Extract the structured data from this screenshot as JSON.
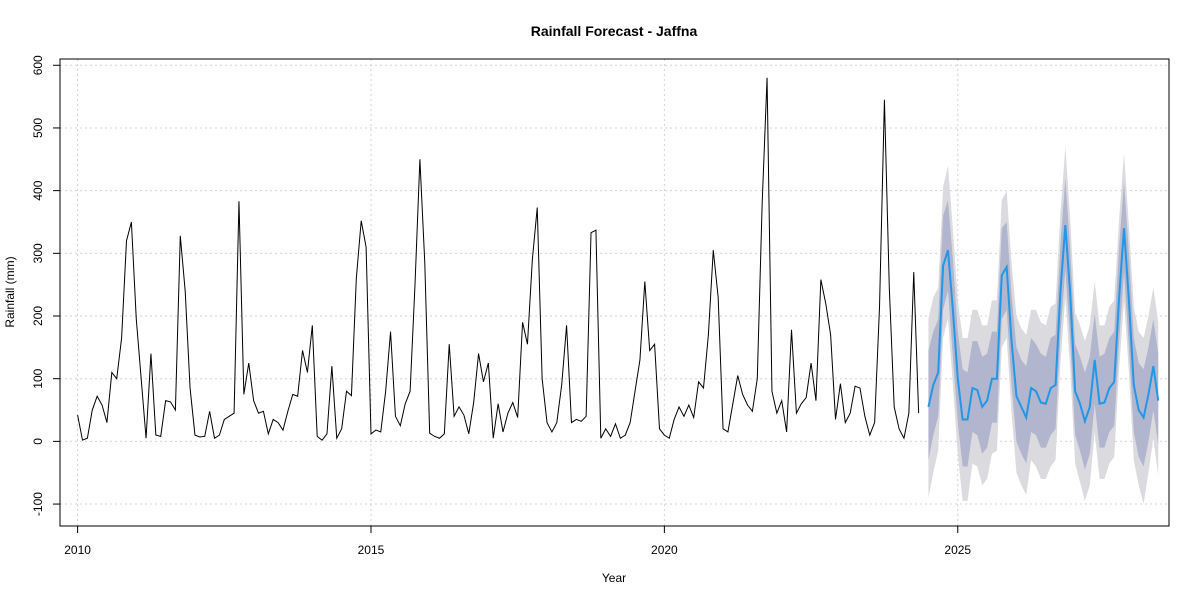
{
  "chart_data": {
    "type": "line",
    "title": "Rainfall Forecast - Jaffna",
    "xlabel": "Year",
    "ylabel": "Rainfall (mm)",
    "xlim": [
      2009.7,
      2028.6
    ],
    "ylim": [
      -135,
      610
    ],
    "x_ticks": [
      2010,
      2015,
      2020,
      2025
    ],
    "y_ticks": [
      -100,
      0,
      100,
      200,
      300,
      400,
      500,
      600
    ],
    "grid": true,
    "colors": {
      "observed": "#000000",
      "forecast_mean": "#2297e6",
      "interval_80": "#b1b5ce",
      "interval_95": "#dbdbdf",
      "grid": "#d3d3d3"
    },
    "observed": {
      "start": 2010.0,
      "step": 0.0833333,
      "values": [
        42,
        2,
        5,
        50,
        72,
        58,
        30,
        110,
        100,
        165,
        320,
        350,
        195,
        100,
        5,
        140,
        10,
        8,
        65,
        63,
        50,
        328,
        240,
        85,
        10,
        7,
        8,
        48,
        5,
        10,
        35,
        40,
        45,
        383,
        75,
        125,
        65,
        45,
        48,
        12,
        35,
        30,
        18,
        48,
        75,
        72,
        145,
        110,
        185,
        8,
        2,
        12,
        120,
        5,
        20,
        80,
        73,
        260,
        352,
        310,
        12,
        18,
        15,
        80,
        175,
        40,
        25,
        60,
        80,
        250,
        450,
        285,
        13,
        8,
        5,
        12,
        155,
        40,
        55,
        42,
        12,
        62,
        140,
        95,
        125,
        5,
        60,
        15,
        45,
        62,
        38,
        190,
        155,
        290,
        373,
        100,
        30,
        15,
        30,
        90,
        185,
        30,
        35,
        32,
        40,
        333,
        337,
        5,
        20,
        8,
        28,
        5,
        10,
        30,
        80,
        130,
        255,
        145,
        155,
        20,
        10,
        5,
        35,
        55,
        40,
        58,
        38,
        95,
        85,
        170,
        305,
        230,
        20,
        15,
        60,
        105,
        75,
        58,
        48,
        100,
        380,
        580,
        80,
        45,
        65,
        15,
        178,
        45,
        60,
        70,
        125,
        65,
        258,
        220,
        170,
        35,
        92,
        30,
        45,
        88,
        85,
        40,
        10,
        30,
        215,
        545,
        245,
        55,
        20,
        5,
        45,
        270,
        45
      ]
    },
    "forecast": {
      "start": 2024.5,
      "step": 0.0833333,
      "mean": [
        55,
        90,
        110,
        280,
        305,
        210,
        100,
        35,
        35,
        85,
        82,
        55,
        65,
        100,
        100,
        265,
        278,
        160,
        72,
        55,
        38,
        85,
        80,
        62,
        60,
        85,
        90,
        240,
        345,
        235,
        80,
        60,
        32,
        55,
        130,
        60,
        62,
        85,
        95,
        230,
        340,
        225,
        90,
        50,
        38,
        75,
        120,
        65
      ],
      "lo80": [
        -30,
        10,
        40,
        210,
        240,
        135,
        30,
        -40,
        -40,
        15,
        10,
        -20,
        -10,
        30,
        30,
        195,
        210,
        90,
        0,
        -20,
        -35,
        15,
        10,
        -10,
        -10,
        10,
        20,
        170,
        275,
        160,
        10,
        -15,
        -45,
        -20,
        60,
        -10,
        -10,
        15,
        25,
        160,
        270,
        150,
        15,
        -25,
        -40,
        0,
        50,
        -5
      ],
      "hi80": [
        145,
        175,
        195,
        360,
        385,
        290,
        175,
        115,
        110,
        160,
        160,
        135,
        140,
        175,
        175,
        340,
        350,
        235,
        150,
        130,
        120,
        165,
        155,
        140,
        135,
        165,
        170,
        315,
        420,
        305,
        155,
        135,
        110,
        135,
        205,
        135,
        140,
        165,
        175,
        310,
        415,
        300,
        165,
        125,
        115,
        150,
        195,
        140
      ],
      "lo95": [
        -90,
        -50,
        -15,
        165,
        195,
        90,
        -20,
        -95,
        -95,
        -35,
        -40,
        -70,
        -60,
        -20,
        -15,
        150,
        165,
        45,
        -50,
        -70,
        -85,
        -30,
        -40,
        -60,
        -60,
        -40,
        -30,
        125,
        230,
        115,
        -35,
        -65,
        -95,
        -70,
        15,
        -60,
        -60,
        -35,
        -25,
        115,
        225,
        110,
        -30,
        -70,
        -100,
        -50,
        5,
        -55
      ],
      "hi95": [
        195,
        230,
        245,
        405,
        440,
        340,
        225,
        165,
        165,
        210,
        210,
        185,
        185,
        225,
        225,
        385,
        400,
        285,
        200,
        180,
        170,
        210,
        210,
        190,
        185,
        215,
        220,
        365,
        470,
        355,
        205,
        185,
        160,
        185,
        255,
        185,
        185,
        215,
        225,
        355,
        460,
        345,
        215,
        175,
        165,
        200,
        245,
        190
      ]
    }
  }
}
